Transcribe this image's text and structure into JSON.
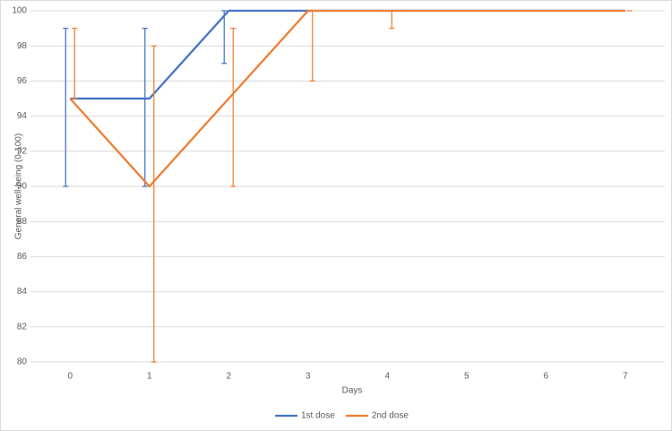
{
  "chart_data": {
    "type": "line",
    "x_label": "Days",
    "y_label": "General well-being (0-100)",
    "categories": [
      "0",
      "1",
      "2",
      "3",
      "4",
      "5",
      "6",
      "7"
    ],
    "series": [
      {
        "name": "1st dose",
        "color": "#4472c4",
        "values": [
          95,
          95,
          100,
          100,
          100,
          100,
          100,
          100
        ],
        "err_minus": [
          5,
          5,
          3,
          0,
          0,
          0,
          0,
          0
        ],
        "err_plus": [
          4,
          4,
          0,
          0,
          0,
          0,
          0,
          0
        ]
      },
      {
        "name": "2nd dose",
        "color": "#ed7d31",
        "values": [
          95,
          90,
          95,
          100,
          100,
          100,
          100,
          100
        ],
        "err_minus": [
          0,
          10,
          5,
          4,
          1,
          0,
          0,
          0
        ],
        "err_plus": [
          4,
          8,
          4,
          0,
          0,
          0,
          0,
          0
        ]
      }
    ],
    "ylim": [
      80,
      100
    ],
    "yticks": [
      80,
      82,
      84,
      86,
      88,
      90,
      92,
      94,
      96,
      98,
      100
    ],
    "grid": true,
    "legend": "bottom"
  }
}
